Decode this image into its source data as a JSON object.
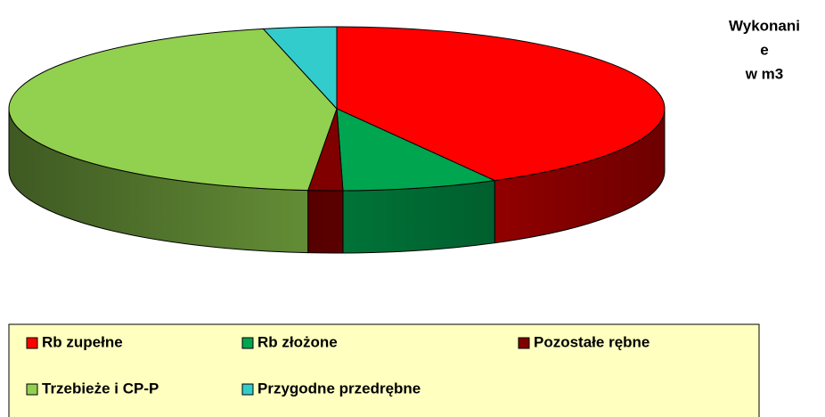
{
  "chart_data": {
    "type": "pie3d",
    "title": [
      "Wykonani",
      "e",
      "w m3"
    ],
    "categories": [
      "Rb zupełne",
      "Rb złożone",
      "Pozostałe rębne",
      "Trzebieże i CP-P",
      "Przygodne przedrębne"
    ],
    "values": [
      42.0,
      7.7,
      1.7,
      45.0,
      3.6
    ],
    "colors": [
      "#ff0000",
      "#00a550",
      "#800000",
      "#92d050",
      "#33cccc"
    ],
    "legend": "bottom"
  }
}
